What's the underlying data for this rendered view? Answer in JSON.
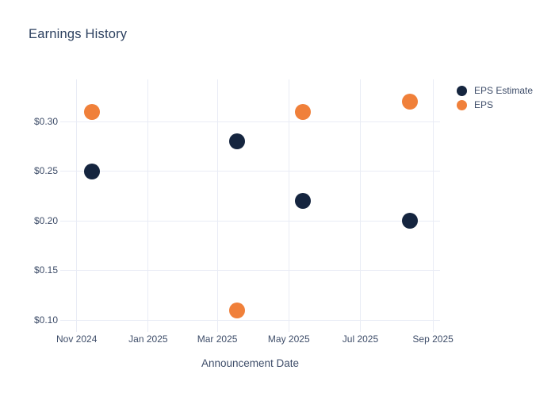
{
  "chart_data": {
    "type": "scatter",
    "title": "Earnings History",
    "xlabel": "Announcement Date",
    "ylabel": "",
    "background_color": "#ffffff",
    "grid": true,
    "grid_color": "#e9ecf5",
    "tick_text_color": "#3e4d69",
    "title_color": "#2d4160",
    "legend_position": "outside-top-right",
    "x_axis": {
      "type": "date",
      "range": [
        "2024-10-18",
        "2025-09-07"
      ],
      "ticks": [
        {
          "date": "2024-11-01",
          "label": "Nov 2024"
        },
        {
          "date": "2025-01-01",
          "label": "Jan 2025"
        },
        {
          "date": "2025-03-01",
          "label": "Mar 2025"
        },
        {
          "date": "2025-05-01",
          "label": "May 2025"
        },
        {
          "date": "2025-07-01",
          "label": "Jul 2025"
        },
        {
          "date": "2025-09-01",
          "label": "Sep 2025"
        }
      ]
    },
    "y_axis": {
      "range": [
        0.0904,
        0.3424
      ],
      "ticks": [
        {
          "value": 0.3,
          "label": "$0.30"
        },
        {
          "value": 0.25,
          "label": "$0.25"
        },
        {
          "value": 0.2,
          "label": "$0.20"
        },
        {
          "value": 0.15,
          "label": "$0.15"
        },
        {
          "value": 0.1,
          "label": "$0.10"
        }
      ]
    },
    "series": [
      {
        "name": "EPS Estimate",
        "color": "#15253f",
        "marker_size_px": 20,
        "points": [
          {
            "x": "2024-11-14",
            "y": 0.25
          },
          {
            "x": "2025-03-18",
            "y": 0.28
          },
          {
            "x": "2025-05-13",
            "y": 0.22
          },
          {
            "x": "2025-08-12",
            "y": 0.2
          }
        ]
      },
      {
        "name": "EPS",
        "color": "#f0803a",
        "marker_size_px": 20,
        "points": [
          {
            "x": "2024-11-14",
            "y": 0.31
          },
          {
            "x": "2025-03-18",
            "y": 0.11
          },
          {
            "x": "2025-05-13",
            "y": 0.31
          },
          {
            "x": "2025-08-12",
            "y": 0.32
          }
        ]
      }
    ]
  }
}
